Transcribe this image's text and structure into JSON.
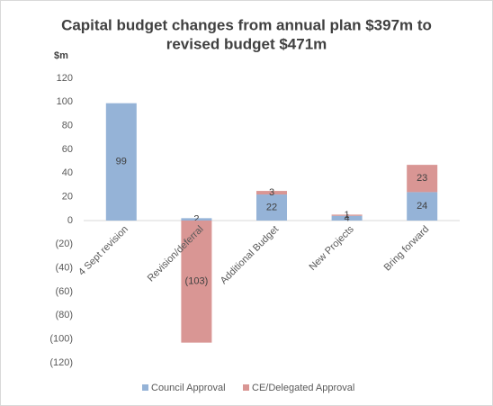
{
  "chart_data": {
    "type": "bar",
    "stacked": true,
    "title": [
      "Capital budget changes from annual plan $397m to",
      "revised budget $471m"
    ],
    "y_label": "$m",
    "categories": [
      "4 Sept revision",
      "Revision/deferral",
      "Additional Budget",
      "New Projects",
      "Bring forward"
    ],
    "series": [
      {
        "name": "Council Approval",
        "color": "#95b3d7",
        "values": [
          99,
          2,
          22,
          4,
          24
        ]
      },
      {
        "name": "CE/Delegated Approval",
        "color": "#d99694",
        "values": [
          null,
          -103,
          3,
          1,
          23
        ],
        "value_labels": [
          null,
          "(103)",
          "3",
          "1",
          "23"
        ]
      }
    ],
    "ylim": [
      -120,
      120
    ],
    "yticks": [
      {
        "value": -120,
        "label": "(120)"
      },
      {
        "value": -100,
        "label": "(100)"
      },
      {
        "value": -80,
        "label": "(80)"
      },
      {
        "value": -60,
        "label": "(60)"
      },
      {
        "value": -40,
        "label": "(40)"
      },
      {
        "value": -20,
        "label": "(20)"
      },
      0,
      20,
      40,
      60,
      80,
      100,
      120
    ],
    "grid": false
  }
}
